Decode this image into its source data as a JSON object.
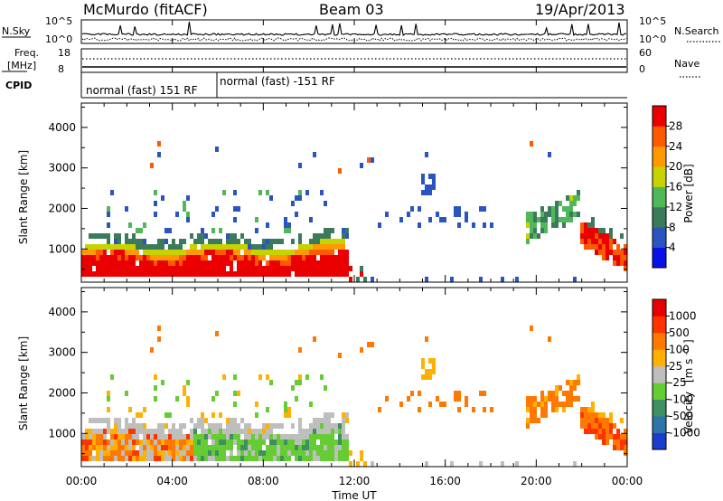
{
  "header": {
    "station": "McMurdo (fitACF)",
    "beam": "Beam 03",
    "date": "19/Apr/2013"
  },
  "summary_panel": {
    "left_label_top": "N.Sky",
    "left_ticks": [
      "10^5",
      "10^0"
    ],
    "right_label": "N.Search",
    "right_ticks": [
      "10^5",
      "10^0"
    ],
    "freq_label_1": "Freq.",
    "freq_label_2": "[MHz]",
    "freq_ticks": [
      "18",
      "8"
    ],
    "nave_label": "Nave",
    "nave_ticks": [
      "60",
      "0"
    ],
    "cpid_label": "CPID",
    "cpid_segments": [
      {
        "label": "normal (fast) 151 RF",
        "start_hour": 0,
        "end_hour": 6.0
      },
      {
        "label": "normal (fast) -151 RF",
        "start_hour": 6.0,
        "end_hour": 24
      }
    ]
  },
  "chart_data": [
    {
      "type": "heatmap",
      "ylabel": "Slant Range [km]",
      "xlim": [
        0,
        24
      ],
      "ylim": [
        180,
        4600
      ],
      "yticks": [
        1000,
        2000,
        3000,
        4000
      ],
      "colorbar": {
        "label": "Power [dB]",
        "ticks": [
          "4",
          "8",
          "12",
          "16",
          "20",
          "24",
          "28"
        ],
        "colors": [
          "#0a10e8",
          "#2a55c0",
          "#3c7a5c",
          "#50b85a",
          "#c7d300",
          "#ff9900",
          "#ff5a00",
          "#ea0000"
        ]
      }
    },
    {
      "type": "heatmap",
      "ylabel": "Slant Range [km]",
      "xlabel": "Time UT",
      "xlim": [
        0,
        24
      ],
      "ylim": [
        180,
        4600
      ],
      "yticks": [
        1000,
        2000,
        3000,
        4000
      ],
      "xticks": [
        "00:00",
        "04:00",
        "08:00",
        "12:00",
        "16:00",
        "20:00",
        "00:00"
      ],
      "colorbar": {
        "label": "Velocity",
        "label_unit": "[m s",
        "label_exp": "-1",
        "label_close": "]",
        "ticks": [
          "1000",
          "500",
          "100",
          "25",
          "-25",
          "-100",
          "-500",
          "-1000"
        ],
        "colors": [
          "#1a3dd0",
          "#2e74a8",
          "#3e8f62",
          "#66cc33",
          "#bebebe",
          "#ffb000",
          "#ff7800",
          "#ff3300",
          "#e60000"
        ]
      }
    }
  ]
}
